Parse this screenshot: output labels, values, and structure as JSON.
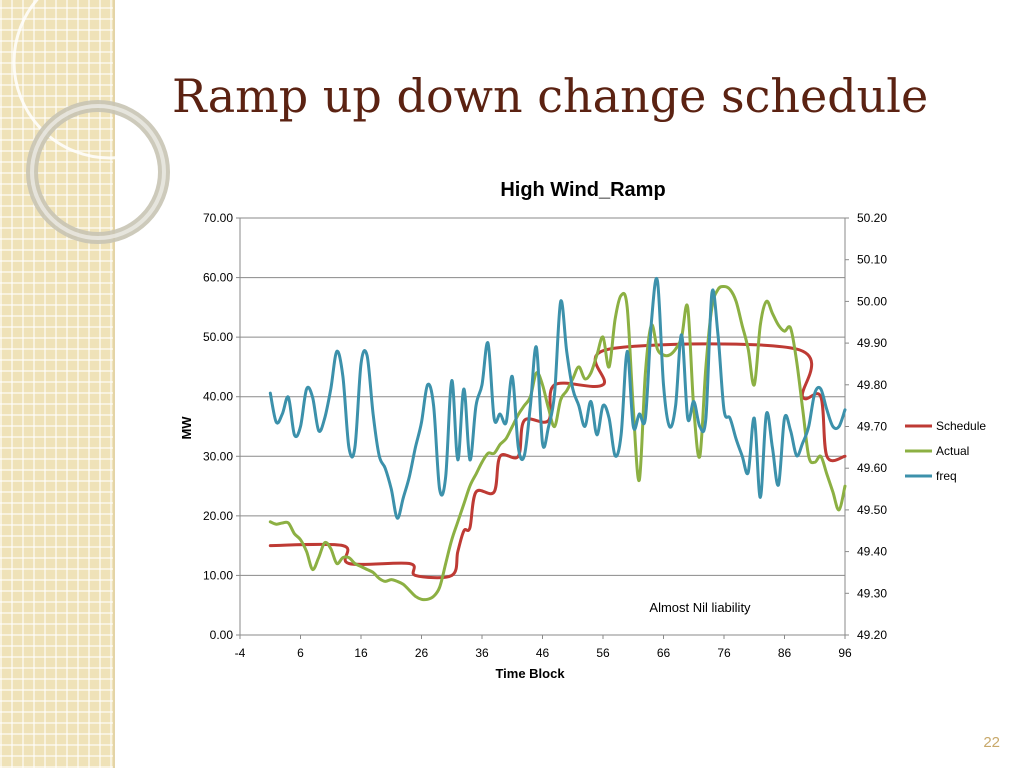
{
  "slide": {
    "title": "Ramp up down change schedule",
    "number": "22"
  },
  "chart_data": {
    "type": "line",
    "title": "High Wind_Ramp",
    "xlabel": "Time Block",
    "ylabel": "MW",
    "xlim": [
      -4,
      96
    ],
    "x_ticks": [
      "-4",
      "6",
      "16",
      "26",
      "36",
      "46",
      "56",
      "66",
      "76",
      "86",
      "96"
    ],
    "ylim": [
      0,
      70
    ],
    "y_ticks": [
      "0.00",
      "10.00",
      "20.00",
      "30.00",
      "40.00",
      "50.00",
      "60.00",
      "70.00"
    ],
    "y2lim": [
      49.2,
      50.2
    ],
    "y2_ticks": [
      "49.20",
      "49.30",
      "49.40",
      "49.50",
      "49.60",
      "49.70",
      "49.80",
      "49.90",
      "50.00",
      "50.10",
      "50.20"
    ],
    "grid": "horizontal",
    "legend_position": "right",
    "annotation": "Almost Nil liability",
    "series": [
      {
        "name": "Schedule",
        "color": "#be3a34",
        "axis": "left",
        "values": [
          [
            1,
            15
          ],
          [
            13,
            15
          ],
          [
            14,
            12
          ],
          [
            24,
            12
          ],
          [
            25,
            10
          ],
          [
            31,
            10
          ],
          [
            32,
            14
          ],
          [
            33,
            17.5
          ],
          [
            34,
            18
          ],
          [
            35,
            24
          ],
          [
            38,
            24
          ],
          [
            39,
            30
          ],
          [
            42,
            30
          ],
          [
            43,
            36
          ],
          [
            47,
            36
          ],
          [
            48,
            42
          ],
          [
            56,
            42
          ],
          [
            57,
            48
          ],
          [
            88,
            48
          ],
          [
            89,
            40
          ],
          [
            92,
            40
          ],
          [
            93,
            30
          ],
          [
            96,
            30
          ]
        ]
      },
      {
        "name": "Actual",
        "color": "#8cb043",
        "axis": "left",
        "values": [
          [
            1,
            19
          ],
          [
            2,
            18.6
          ],
          [
            3,
            18.8
          ],
          [
            4,
            18.8
          ],
          [
            5,
            17
          ],
          [
            6,
            16
          ],
          [
            7,
            14
          ],
          [
            8,
            11
          ],
          [
            9,
            13
          ],
          [
            10,
            15.5
          ],
          [
            11,
            14.5
          ],
          [
            12,
            12
          ],
          [
            13,
            13
          ],
          [
            14,
            13
          ],
          [
            15,
            12
          ],
          [
            16,
            11.5
          ],
          [
            17,
            11
          ],
          [
            18,
            10.5
          ],
          [
            19,
            9.5
          ],
          [
            20,
            9
          ],
          [
            21,
            9.3
          ],
          [
            22,
            9
          ],
          [
            23,
            8.5
          ],
          [
            24,
            7.5
          ],
          [
            25,
            6.5
          ],
          [
            26,
            6
          ],
          [
            27,
            6
          ],
          [
            28,
            6.5
          ],
          [
            29,
            8
          ],
          [
            30,
            12
          ],
          [
            31,
            16
          ],
          [
            32,
            19
          ],
          [
            33,
            22
          ],
          [
            34,
            25
          ],
          [
            35,
            27
          ],
          [
            36,
            29
          ],
          [
            37,
            30.5
          ],
          [
            38,
            30.5
          ],
          [
            39,
            32
          ],
          [
            40,
            33
          ],
          [
            41,
            35
          ],
          [
            42,
            37
          ],
          [
            43,
            38.5
          ],
          [
            44,
            40
          ],
          [
            45,
            44
          ],
          [
            46,
            42
          ],
          [
            47,
            38
          ],
          [
            48,
            35
          ],
          [
            49,
            39.5
          ],
          [
            50,
            41
          ],
          [
            51,
            43
          ],
          [
            52,
            45
          ],
          [
            53,
            43
          ],
          [
            54,
            44
          ],
          [
            55,
            47
          ],
          [
            56,
            50
          ],
          [
            57,
            45
          ],
          [
            58,
            53
          ],
          [
            59,
            57
          ],
          [
            60,
            55
          ],
          [
            61,
            38
          ],
          [
            62,
            26
          ],
          [
            63,
            44
          ],
          [
            64,
            52
          ],
          [
            65,
            48
          ],
          [
            66,
            47
          ],
          [
            67,
            47
          ],
          [
            68,
            48
          ],
          [
            69,
            50
          ],
          [
            70,
            55
          ],
          [
            71,
            38
          ],
          [
            72,
            30
          ],
          [
            73,
            45
          ],
          [
            74,
            55
          ],
          [
            75,
            58
          ],
          [
            76,
            58.5
          ],
          [
            77,
            58
          ],
          [
            78,
            56
          ],
          [
            79,
            52
          ],
          [
            80,
            48
          ],
          [
            81,
            42
          ],
          [
            82,
            52
          ],
          [
            83,
            56
          ],
          [
            84,
            54
          ],
          [
            85,
            52
          ],
          [
            86,
            51
          ],
          [
            87,
            51.5
          ],
          [
            88,
            46
          ],
          [
            89,
            38
          ],
          [
            90,
            30
          ],
          [
            91,
            29
          ],
          [
            92,
            30
          ],
          [
            93,
            27
          ],
          [
            94,
            24
          ],
          [
            95,
            21
          ],
          [
            96,
            25
          ]
        ]
      },
      {
        "name": "freq",
        "color": "#3c91ab",
        "axis": "right",
        "values": [
          [
            1,
            49.78
          ],
          [
            2,
            49.71
          ],
          [
            3,
            49.73
          ],
          [
            4,
            49.77
          ],
          [
            5,
            49.68
          ],
          [
            6,
            49.7
          ],
          [
            7,
            49.79
          ],
          [
            8,
            49.77
          ],
          [
            9,
            49.69
          ],
          [
            10,
            49.72
          ],
          [
            11,
            49.79
          ],
          [
            12,
            49.88
          ],
          [
            13,
            49.82
          ],
          [
            14,
            49.65
          ],
          [
            15,
            49.65
          ],
          [
            16,
            49.85
          ],
          [
            17,
            49.87
          ],
          [
            18,
            49.73
          ],
          [
            19,
            49.63
          ],
          [
            20,
            49.6
          ],
          [
            21,
            49.55
          ],
          [
            22,
            49.48
          ],
          [
            23,
            49.53
          ],
          [
            24,
            49.58
          ],
          [
            25,
            49.65
          ],
          [
            26,
            49.71
          ],
          [
            27,
            49.8
          ],
          [
            28,
            49.75
          ],
          [
            29,
            49.55
          ],
          [
            30,
            49.58
          ],
          [
            31,
            49.81
          ],
          [
            32,
            49.62
          ],
          [
            33,
            49.79
          ],
          [
            34,
            49.62
          ],
          [
            35,
            49.75
          ],
          [
            36,
            49.8
          ],
          [
            37,
            49.9
          ],
          [
            38,
            49.72
          ],
          [
            39,
            49.73
          ],
          [
            40,
            49.71
          ],
          [
            41,
            49.82
          ],
          [
            42,
            49.65
          ],
          [
            43,
            49.63
          ],
          [
            44,
            49.75
          ],
          [
            45,
            49.89
          ],
          [
            46,
            49.66
          ],
          [
            47,
            49.7
          ],
          [
            48,
            49.78
          ],
          [
            49,
            50.0
          ],
          [
            50,
            49.88
          ],
          [
            51,
            49.79
          ],
          [
            52,
            49.75
          ],
          [
            53,
            49.7
          ],
          [
            54,
            49.76
          ],
          [
            55,
            49.68
          ],
          [
            56,
            49.75
          ],
          [
            57,
            49.72
          ],
          [
            58,
            49.63
          ],
          [
            59,
            49.68
          ],
          [
            60,
            49.88
          ],
          [
            61,
            49.7
          ],
          [
            62,
            49.73
          ],
          [
            63,
            49.72
          ],
          [
            64,
            49.95
          ],
          [
            65,
            50.05
          ],
          [
            66,
            49.8
          ],
          [
            67,
            49.7
          ],
          [
            68,
            49.75
          ],
          [
            69,
            49.92
          ],
          [
            70,
            49.72
          ],
          [
            71,
            49.76
          ],
          [
            72,
            49.7
          ],
          [
            73,
            49.72
          ],
          [
            74,
            50.02
          ],
          [
            75,
            49.92
          ],
          [
            76,
            49.74
          ],
          [
            77,
            49.72
          ],
          [
            78,
            49.67
          ],
          [
            79,
            49.63
          ],
          [
            80,
            49.59
          ],
          [
            81,
            49.72
          ],
          [
            82,
            49.53
          ],
          [
            83,
            49.73
          ],
          [
            84,
            49.65
          ],
          [
            85,
            49.56
          ],
          [
            86,
            49.72
          ],
          [
            87,
            49.69
          ],
          [
            88,
            49.63
          ],
          [
            89,
            49.66
          ],
          [
            90,
            49.7
          ],
          [
            91,
            49.78
          ],
          [
            92,
            49.79
          ],
          [
            93,
            49.74
          ],
          [
            94,
            49.7
          ],
          [
            95,
            49.7
          ],
          [
            96,
            49.74
          ]
        ]
      }
    ]
  }
}
